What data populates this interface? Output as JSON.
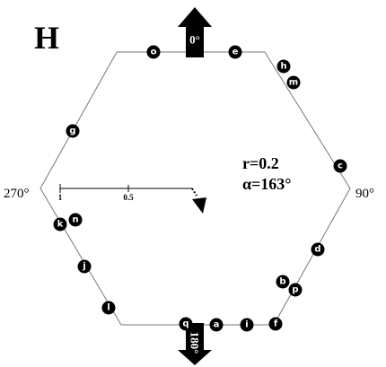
{
  "panel_label": "H",
  "orientation": {
    "top": "0°",
    "bottom": "180°",
    "left": "270°",
    "right": "90°"
  },
  "stats": {
    "r": "r=0.2",
    "alpha": "α=163°"
  },
  "scale": {
    "start": "1",
    "middle": "0.5"
  },
  "nodes": [
    {
      "label": "o"
    },
    {
      "label": "e"
    },
    {
      "label": "h"
    },
    {
      "label": "m"
    },
    {
      "label": "g"
    },
    {
      "label": "c"
    },
    {
      "label": "k"
    },
    {
      "label": "n"
    },
    {
      "label": "j"
    },
    {
      "label": "d"
    },
    {
      "label": "b"
    },
    {
      "label": "p"
    },
    {
      "label": "l"
    },
    {
      "label": "q"
    },
    {
      "label": "a"
    },
    {
      "label": "i"
    },
    {
      "label": "f"
    }
  ]
}
